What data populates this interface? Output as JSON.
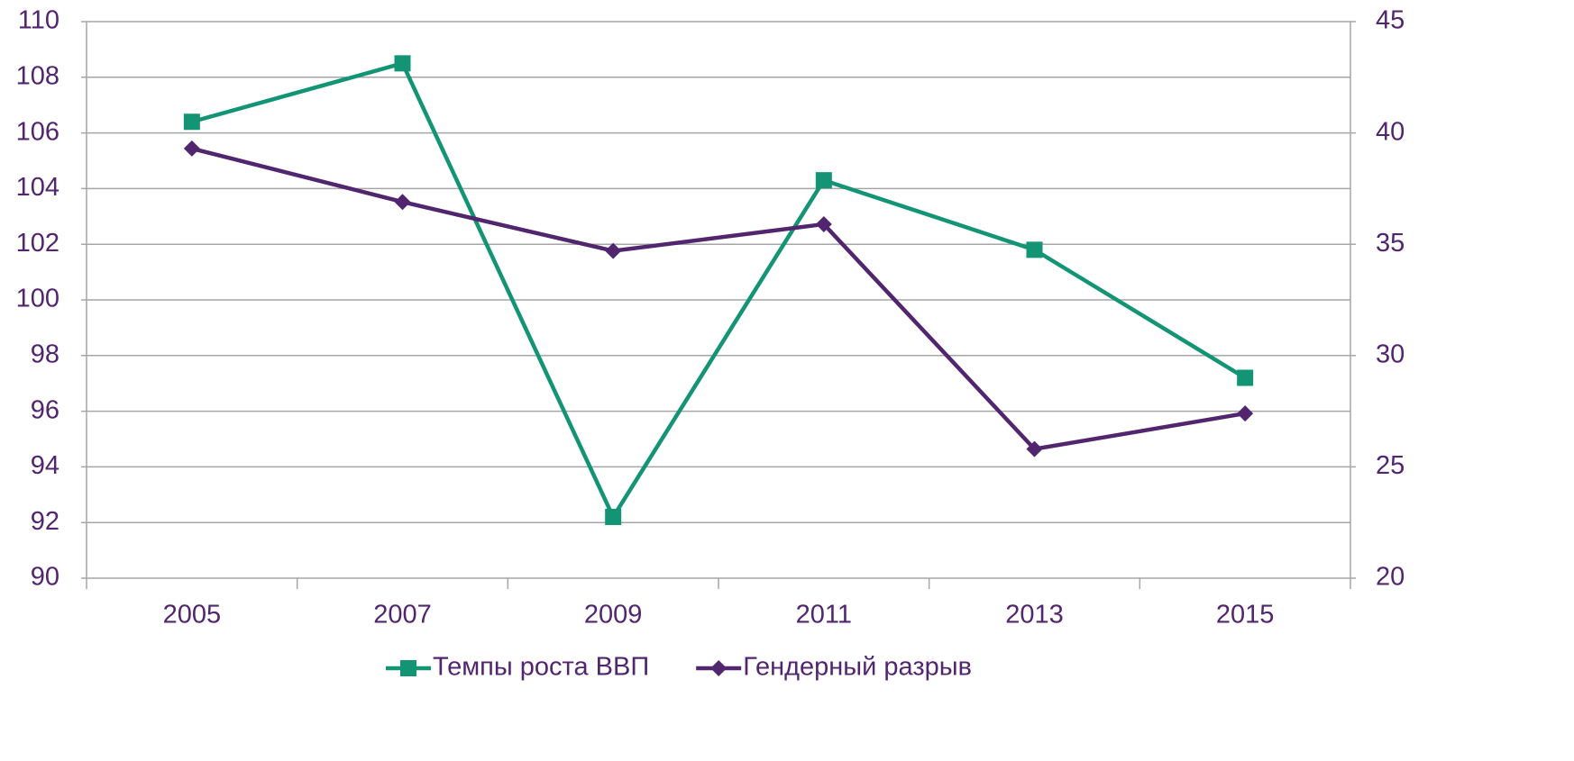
{
  "chart_data": {
    "type": "line",
    "categories": [
      "2005",
      "2007",
      "2009",
      "2011",
      "2013",
      "2015"
    ],
    "series": [
      {
        "name": "Темпы роста ВВП",
        "color": "#139474",
        "marker": "square",
        "values": [
          106.4,
          108.5,
          92.2,
          104.3,
          101.8,
          97.2
        ]
      },
      {
        "name": "Гендерный разрыв",
        "color": "#52256f",
        "marker": "diamond",
        "axis": "y2",
        "values": [
          39.3,
          36.9,
          34.7,
          35.9,
          25.8,
          27.4
        ]
      }
    ],
    "ylim": [
      90,
      110
    ],
    "yticks": [
      90,
      92,
      94,
      96,
      98,
      100,
      102,
      104,
      106,
      108,
      110
    ],
    "y2lim": [
      20,
      45
    ],
    "y2ticks": [
      20,
      25,
      30,
      35,
      40,
      45
    ],
    "grid": true,
    "legend": "bottom"
  }
}
